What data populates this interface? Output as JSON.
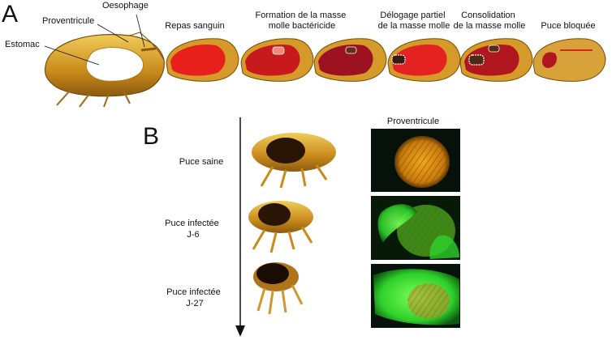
{
  "panel_a": {
    "letter": "A",
    "anatomy": {
      "oesophage": "Oesophage",
      "proventricule": "Proventricule",
      "estomac": "Estomac"
    },
    "stages": [
      {
        "label_lines": [
          "Repas sanguin"
        ]
      },
      {
        "label_lines": [
          "Formation de la masse",
          "molle bactéricide"
        ]
      },
      {
        "label_lines": [
          "Délogage partiel",
          "de la masse molle"
        ]
      },
      {
        "label_lines": [
          "Consolidation",
          "de la masse molle"
        ]
      },
      {
        "label_lines": [
          "Puce  bloquée"
        ]
      }
    ]
  },
  "panel_b": {
    "letter": "B",
    "column_header": "Proventricule",
    "rows": [
      {
        "label_lines": [
          "Puce saine"
        ]
      },
      {
        "label_lines": [
          "Puce infectée",
          "J-6"
        ]
      },
      {
        "label_lines": [
          "Puce infectée",
          "J-27"
        ]
      }
    ]
  },
  "colors": {
    "flea_body": "#c98a1a",
    "flea_light": "#e8c04a",
    "blood": "#e41e1e",
    "blood_dark": "#a5151e",
    "micro_bg": "#06110a",
    "micro_orange": "#d98e12",
    "micro_green": "#2fe02a"
  }
}
